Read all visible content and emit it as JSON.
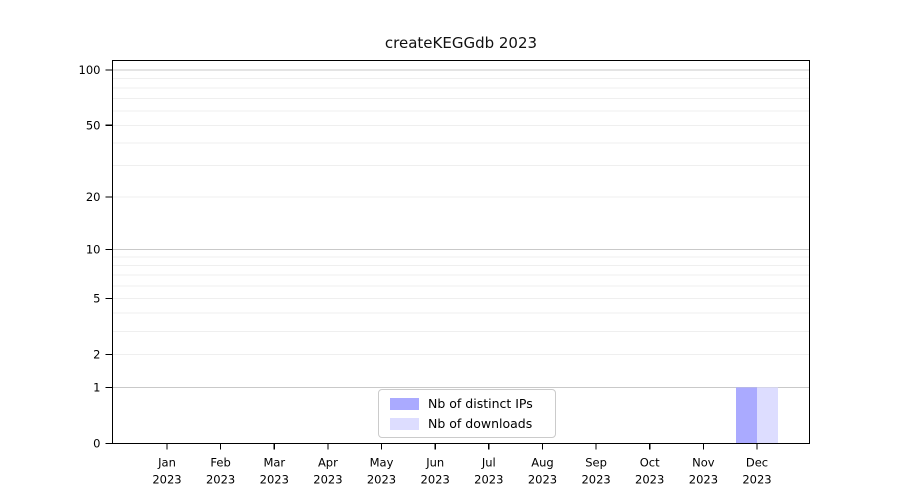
{
  "chart_data": {
    "type": "bar",
    "title": "createKEGGdb 2023",
    "categories": [
      "Jan 2023",
      "Feb 2023",
      "Mar 2023",
      "Apr 2023",
      "May 2023",
      "Jun 2023",
      "Jul 2023",
      "Aug 2023",
      "Sep 2023",
      "Oct 2023",
      "Nov 2023",
      "Dec 2023"
    ],
    "series": [
      {
        "name": "Nb of distinct IPs",
        "color": "#aaaaff",
        "values": [
          0,
          0,
          0,
          0,
          0,
          0,
          0,
          0,
          0,
          0,
          0,
          1
        ]
      },
      {
        "name": "Nb of downloads",
        "color": "#ddddff",
        "values": [
          0,
          0,
          0,
          0,
          0,
          0,
          0,
          0,
          0,
          0,
          0,
          1
        ]
      }
    ],
    "xlabel": "",
    "ylabel": "",
    "yscale": "log1p",
    "yticks": [
      0,
      1,
      2,
      5,
      10,
      20,
      50,
      100
    ],
    "ylim": [
      0,
      113
    ],
    "grid": "horizontal, minor log gridlines on, major at 1/10/100",
    "legend_position": "lower center"
  },
  "colors": {
    "bar_distinct_ips": "#aaaaff",
    "bar_downloads": "#ddddff",
    "major_gridline": "#c9c9c9",
    "minor_gridline": "#efefef",
    "spine": "#000000",
    "text": "#111111",
    "legend_border": "#cbcbcb",
    "background": "#ffffff"
  }
}
